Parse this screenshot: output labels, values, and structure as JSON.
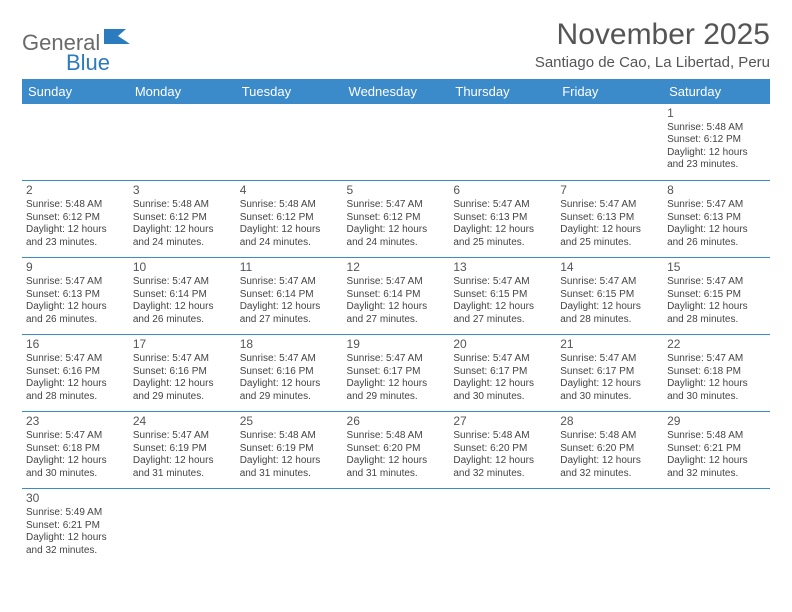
{
  "logo": {
    "word1": "General",
    "word2": "Blue"
  },
  "title": {
    "month": "November 2025",
    "location": "Santiago de Cao, La Libertad, Peru"
  },
  "colors": {
    "header_bg": "#3b8aca",
    "header_fg": "#ffffff",
    "rule": "#3b8aca",
    "logo_gray": "#6a6a6a",
    "logo_blue": "#2b7bbf"
  },
  "weekdays": [
    "Sunday",
    "Monday",
    "Tuesday",
    "Wednesday",
    "Thursday",
    "Friday",
    "Saturday"
  ],
  "first_weekday_index": 6,
  "days": [
    {
      "n": 1,
      "sunrise": "5:48 AM",
      "sunset": "6:12 PM",
      "daylight": "12 hours and 23 minutes."
    },
    {
      "n": 2,
      "sunrise": "5:48 AM",
      "sunset": "6:12 PM",
      "daylight": "12 hours and 23 minutes."
    },
    {
      "n": 3,
      "sunrise": "5:48 AM",
      "sunset": "6:12 PM",
      "daylight": "12 hours and 24 minutes."
    },
    {
      "n": 4,
      "sunrise": "5:48 AM",
      "sunset": "6:12 PM",
      "daylight": "12 hours and 24 minutes."
    },
    {
      "n": 5,
      "sunrise": "5:47 AM",
      "sunset": "6:12 PM",
      "daylight": "12 hours and 24 minutes."
    },
    {
      "n": 6,
      "sunrise": "5:47 AM",
      "sunset": "6:13 PM",
      "daylight": "12 hours and 25 minutes."
    },
    {
      "n": 7,
      "sunrise": "5:47 AM",
      "sunset": "6:13 PM",
      "daylight": "12 hours and 25 minutes."
    },
    {
      "n": 8,
      "sunrise": "5:47 AM",
      "sunset": "6:13 PM",
      "daylight": "12 hours and 26 minutes."
    },
    {
      "n": 9,
      "sunrise": "5:47 AM",
      "sunset": "6:13 PM",
      "daylight": "12 hours and 26 minutes."
    },
    {
      "n": 10,
      "sunrise": "5:47 AM",
      "sunset": "6:14 PM",
      "daylight": "12 hours and 26 minutes."
    },
    {
      "n": 11,
      "sunrise": "5:47 AM",
      "sunset": "6:14 PM",
      "daylight": "12 hours and 27 minutes."
    },
    {
      "n": 12,
      "sunrise": "5:47 AM",
      "sunset": "6:14 PM",
      "daylight": "12 hours and 27 minutes."
    },
    {
      "n": 13,
      "sunrise": "5:47 AM",
      "sunset": "6:15 PM",
      "daylight": "12 hours and 27 minutes."
    },
    {
      "n": 14,
      "sunrise": "5:47 AM",
      "sunset": "6:15 PM",
      "daylight": "12 hours and 28 minutes."
    },
    {
      "n": 15,
      "sunrise": "5:47 AM",
      "sunset": "6:15 PM",
      "daylight": "12 hours and 28 minutes."
    },
    {
      "n": 16,
      "sunrise": "5:47 AM",
      "sunset": "6:16 PM",
      "daylight": "12 hours and 28 minutes."
    },
    {
      "n": 17,
      "sunrise": "5:47 AM",
      "sunset": "6:16 PM",
      "daylight": "12 hours and 29 minutes."
    },
    {
      "n": 18,
      "sunrise": "5:47 AM",
      "sunset": "6:16 PM",
      "daylight": "12 hours and 29 minutes."
    },
    {
      "n": 19,
      "sunrise": "5:47 AM",
      "sunset": "6:17 PM",
      "daylight": "12 hours and 29 minutes."
    },
    {
      "n": 20,
      "sunrise": "5:47 AM",
      "sunset": "6:17 PM",
      "daylight": "12 hours and 30 minutes."
    },
    {
      "n": 21,
      "sunrise": "5:47 AM",
      "sunset": "6:17 PM",
      "daylight": "12 hours and 30 minutes."
    },
    {
      "n": 22,
      "sunrise": "5:47 AM",
      "sunset": "6:18 PM",
      "daylight": "12 hours and 30 minutes."
    },
    {
      "n": 23,
      "sunrise": "5:47 AM",
      "sunset": "6:18 PM",
      "daylight": "12 hours and 30 minutes."
    },
    {
      "n": 24,
      "sunrise": "5:47 AM",
      "sunset": "6:19 PM",
      "daylight": "12 hours and 31 minutes."
    },
    {
      "n": 25,
      "sunrise": "5:48 AM",
      "sunset": "6:19 PM",
      "daylight": "12 hours and 31 minutes."
    },
    {
      "n": 26,
      "sunrise": "5:48 AM",
      "sunset": "6:20 PM",
      "daylight": "12 hours and 31 minutes."
    },
    {
      "n": 27,
      "sunrise": "5:48 AM",
      "sunset": "6:20 PM",
      "daylight": "12 hours and 32 minutes."
    },
    {
      "n": 28,
      "sunrise": "5:48 AM",
      "sunset": "6:20 PM",
      "daylight": "12 hours and 32 minutes."
    },
    {
      "n": 29,
      "sunrise": "5:48 AM",
      "sunset": "6:21 PM",
      "daylight": "12 hours and 32 minutes."
    },
    {
      "n": 30,
      "sunrise": "5:49 AM",
      "sunset": "6:21 PM",
      "daylight": "12 hours and 32 minutes."
    }
  ],
  "labels": {
    "sunrise": "Sunrise:",
    "sunset": "Sunset:",
    "daylight": "Daylight:"
  }
}
